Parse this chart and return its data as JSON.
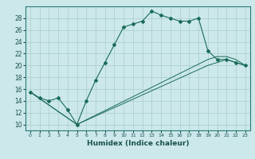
{
  "title": "",
  "xlabel": "Humidex (Indice chaleur)",
  "bg_color": "#cce8ea",
  "grid_color": "#aacccc",
  "line_color": "#1a6b5a",
  "xlim": [
    -0.5,
    23.5
  ],
  "ylim": [
    9,
    30
  ],
  "xticks": [
    0,
    1,
    2,
    3,
    4,
    5,
    6,
    7,
    8,
    9,
    10,
    11,
    12,
    13,
    14,
    15,
    16,
    17,
    18,
    19,
    20,
    21,
    22,
    23
  ],
  "yticks": [
    10,
    12,
    14,
    16,
    18,
    20,
    22,
    24,
    26,
    28
  ],
  "main_x": [
    0,
    1,
    2,
    3,
    4,
    5,
    6,
    7,
    8,
    9,
    10,
    11,
    12,
    13,
    14,
    15,
    16,
    17,
    18,
    19,
    20,
    21,
    22,
    23
  ],
  "main_y": [
    15.5,
    14.5,
    14.0,
    14.5,
    12.5,
    10.0,
    14.0,
    17.5,
    20.5,
    23.5,
    26.5,
    27.0,
    27.5,
    29.2,
    28.5,
    28.0,
    27.5,
    27.5,
    28.0,
    22.5,
    21.0,
    21.0,
    20.5,
    20.0
  ],
  "line2_x": [
    0,
    5,
    19,
    20,
    21,
    22,
    23
  ],
  "line2_y": [
    15.5,
    10.0,
    20.0,
    20.5,
    21.0,
    20.5,
    20.0
  ],
  "line3_x": [
    0,
    5,
    19,
    20,
    21,
    22,
    23
  ],
  "line3_y": [
    15.5,
    10.0,
    21.0,
    21.5,
    21.5,
    21.0,
    20.0
  ]
}
